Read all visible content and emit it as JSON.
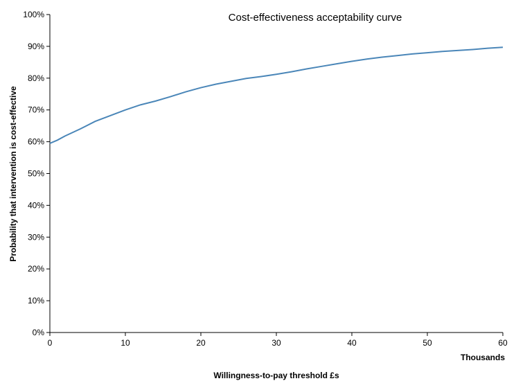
{
  "chart_data": {
    "type": "line",
    "title": "Cost-effectiveness  acceptability curve",
    "xlabel": "Willingness-to-pay threshold £s",
    "x_unit_label": "Thousands",
    "ylabel": "Probability that intervention is cost-effective",
    "xlim": [
      0,
      60
    ],
    "ylim": [
      0,
      1
    ],
    "x_ticks": [
      0,
      10,
      20,
      30,
      40,
      50,
      60
    ],
    "x_tick_labels": [
      "0",
      "10",
      "20",
      "30",
      "40",
      "50",
      "60"
    ],
    "y_ticks": [
      0,
      0.1,
      0.2,
      0.3,
      0.4,
      0.5,
      0.6,
      0.7,
      0.8,
      0.9,
      1.0
    ],
    "y_tick_labels": [
      "0%",
      "10%",
      "20%",
      "30%",
      "40%",
      "50%",
      "60%",
      "70%",
      "80%",
      "90%",
      "100%"
    ],
    "grid": false,
    "line_color": "#4a86b8",
    "series": [
      {
        "x": [
          0,
          1,
          2,
          4,
          6,
          8,
          10,
          12,
          14,
          16,
          18,
          20,
          22,
          24,
          26,
          28,
          30,
          32,
          34,
          36,
          38,
          40,
          42,
          44,
          46,
          48,
          50,
          52,
          54,
          56,
          58,
          60
        ],
        "y": [
          0.595,
          0.605,
          0.618,
          0.64,
          0.664,
          0.682,
          0.7,
          0.716,
          0.728,
          0.742,
          0.757,
          0.77,
          0.781,
          0.79,
          0.799,
          0.805,
          0.812,
          0.82,
          0.829,
          0.837,
          0.845,
          0.853,
          0.86,
          0.866,
          0.871,
          0.876,
          0.88,
          0.884,
          0.887,
          0.89,
          0.894,
          0.897
        ]
      }
    ]
  }
}
